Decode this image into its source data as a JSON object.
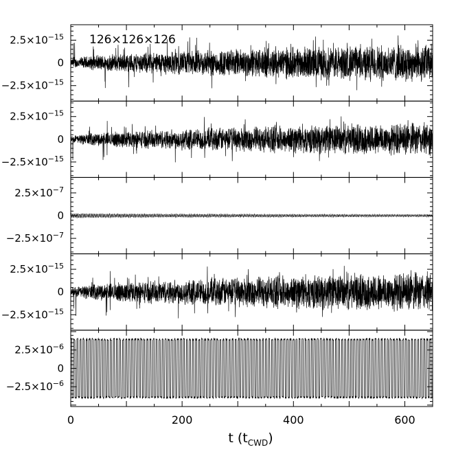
{
  "chart_data": {
    "type": "line",
    "annotation": "126×126×126",
    "xlabel": "t (t",
    "xlabel_sub": "CWD",
    "xlabel_close": ")",
    "xlim": [
      0,
      650
    ],
    "xticks": [
      {
        "value": 0,
        "label": "0"
      },
      {
        "value": 200,
        "label": "200"
      },
      {
        "value": 400,
        "label": "400"
      },
      {
        "value": 600,
        "label": "600"
      }
    ],
    "panels": [
      {
        "kind": "growing-noise",
        "amp_start": 4e-16,
        "amp_end": 2.3e-15,
        "amp_max": 3.3e-15,
        "ylim": [
          -4.2e-15,
          4.2e-15
        ],
        "yticks": [
          {
            "value": 2.5e-15,
            "mantissa": "2.5×10",
            "exp": "−15"
          },
          {
            "value": 0,
            "mantissa": "0",
            "exp": ""
          },
          {
            "value": -2.5e-15,
            "mantissa": "−2.5×10",
            "exp": "−15"
          }
        ]
      },
      {
        "kind": "growing-noise",
        "amp_start": 3e-16,
        "amp_end": 2e-15,
        "amp_max": 2.8e-15,
        "ylim": [
          -4.2e-15,
          4.2e-15
        ],
        "yticks": [
          {
            "value": 2.5e-15,
            "mantissa": "2.5×10",
            "exp": "−15"
          },
          {
            "value": 0,
            "mantissa": "0",
            "exp": ""
          },
          {
            "value": -2.5e-15,
            "mantissa": "−2.5×10",
            "exp": "−15"
          }
        ]
      },
      {
        "kind": "oscillation",
        "amp_start": 2e-08,
        "amp_end": 1e-08,
        "amp_max": 2.5e-08,
        "ylim": [
          -4.2e-07,
          4.2e-07
        ],
        "yticks": [
          {
            "value": 2.5e-07,
            "mantissa": "2.5×10",
            "exp": "−7"
          },
          {
            "value": 0,
            "mantissa": "0",
            "exp": ""
          },
          {
            "value": -2.5e-07,
            "mantissa": "−2.5×10",
            "exp": "−7"
          }
        ]
      },
      {
        "kind": "growing-noise",
        "amp_start": 4e-16,
        "amp_end": 2.4e-15,
        "amp_max": 3.2e-15,
        "ylim": [
          -4.2e-15,
          4.2e-15
        ],
        "yticks": [
          {
            "value": 2.5e-15,
            "mantissa": "2.5×10",
            "exp": "−15"
          },
          {
            "value": 0,
            "mantissa": "0",
            "exp": ""
          },
          {
            "value": -2.5e-15,
            "mantissa": "−2.5×10",
            "exp": "−15"
          }
        ]
      },
      {
        "kind": "large-oscillation",
        "amp_start": 4.1e-06,
        "amp_end": 4.1e-06,
        "amp_max": 4.3e-06,
        "ylim": [
          -5.2e-06,
          5.2e-06
        ],
        "yticks": [
          {
            "value": 2.5e-06,
            "mantissa": "2.5×10",
            "exp": "−6"
          },
          {
            "value": 0,
            "mantissa": "0",
            "exp": ""
          },
          {
            "value": -2.5e-06,
            "mantissa": "−2.5×10",
            "exp": "−6"
          }
        ]
      }
    ],
    "colors": {
      "line": "#000000",
      "axis": "#000000",
      "background": "#ffffff"
    }
  }
}
